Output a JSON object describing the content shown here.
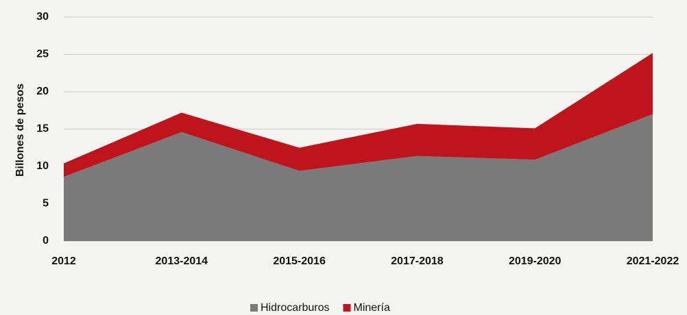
{
  "chart_data": {
    "type": "stacked_area",
    "y_label": "Billones de pesos",
    "categories": [
      "2012",
      "2013-2014",
      "2015-2016",
      "2017-2018",
      "2019-2020",
      "2021-2022"
    ],
    "series": [
      {
        "name": "Hidrocarburos",
        "color": "#7a7a7a",
        "values": [
          8.6,
          14.6,
          9.4,
          11.4,
          10.9,
          17.0
        ]
      },
      {
        "name": "Minería",
        "color": "#c0141c",
        "values": [
          1.8,
          2.6,
          3.1,
          4.3,
          4.2,
          8.2
        ]
      }
    ],
    "ylim": [
      0,
      30
    ],
    "yticks": [
      0,
      5,
      10,
      15,
      20,
      25,
      30
    ],
    "grid": true,
    "legend": "bottom"
  }
}
